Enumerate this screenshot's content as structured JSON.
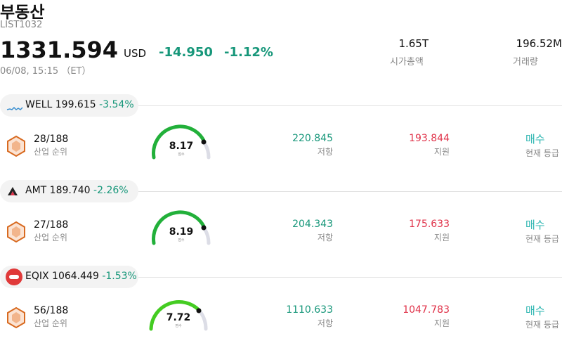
{
  "header": {
    "title": "부동산",
    "code": "LIST1032",
    "price": "1331.594",
    "currency": "USD",
    "change": "-14.950",
    "change_percent": "-1.12%",
    "timestamp": "06/08, 15:15 （ET）"
  },
  "stats": [
    {
      "value": "1.65T",
      "label": "시가총액"
    },
    {
      "value": "196.52M",
      "label": "거래량"
    }
  ],
  "stocks": [
    {
      "ticker": "WELL",
      "price": "199.615",
      "change_percent": "-3.54%",
      "rank": "28/188",
      "rank_label": "산업 순위",
      "score": "8.17",
      "score_label": "점수",
      "resistance": "220.845",
      "resistance_label": "저항",
      "support": "193.844",
      "support_label": "지원",
      "rating": "매수",
      "rating_label": "현재 등급"
    },
    {
      "ticker": "AMT",
      "price": "189.740",
      "change_percent": "-2.26%",
      "rank": "27/188",
      "rank_label": "산업 순위",
      "score": "8.19",
      "score_label": "점수",
      "resistance": "204.343",
      "resistance_label": "저항",
      "support": "175.633",
      "support_label": "지원",
      "rating": "매수",
      "rating_label": "현재 등급"
    },
    {
      "ticker": "EQIX",
      "price": "1064.449",
      "change_percent": "-1.53%",
      "rank": "56/188",
      "rank_label": "산업 순위",
      "score": "7.72",
      "score_label": "점수",
      "resistance": "1110.633",
      "resistance_label": "저항",
      "support": "1047.783",
      "support_label": "지원",
      "rating": "매수",
      "rating_label": "현재 등급"
    }
  ]
}
